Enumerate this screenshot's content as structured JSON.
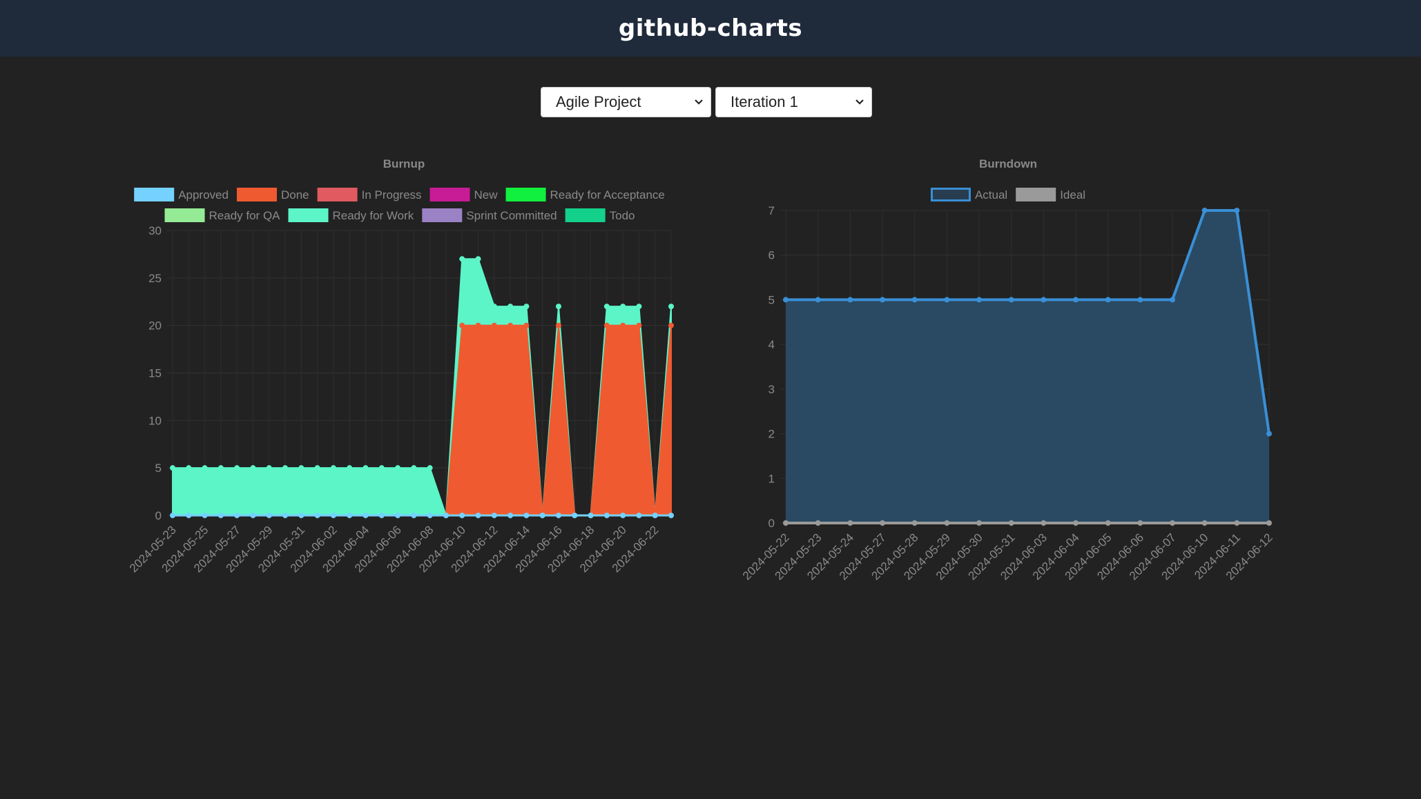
{
  "header": {
    "title": "github-charts"
  },
  "filters": {
    "project": "Agile Project",
    "iteration": "Iteration 1"
  },
  "colors": {
    "topbar": "#1f2a3a",
    "background": "#222222"
  },
  "chart_data": [
    {
      "type": "area",
      "title": "Burnup",
      "ylim": [
        0,
        30
      ],
      "y_ticks": [
        "0",
        "5",
        "10",
        "15",
        "20",
        "25",
        "30"
      ],
      "x_tick_labels": [
        "2024-05-23",
        "2024-05-25",
        "2024-05-27",
        "2024-05-29",
        "2024-05-31",
        "2024-06-02",
        "2024-06-04",
        "2024-06-06",
        "2024-06-08",
        "2024-06-10",
        "2024-06-12",
        "2024-06-14",
        "2024-06-16",
        "2024-06-18",
        "2024-06-20",
        "2024-06-22"
      ],
      "legend_position": "top",
      "legend": [
        {
          "name": "Approved",
          "color": "#75d1ff"
        },
        {
          "name": "Done",
          "color": "#f05a30"
        },
        {
          "name": "In Progress",
          "color": "#e05a60"
        },
        {
          "name": "New",
          "color": "#c81b96"
        },
        {
          "name": "Ready for Acceptance",
          "color": "#12f03f"
        },
        {
          "name": "Ready for QA",
          "color": "#95eb95"
        },
        {
          "name": "Ready for Work",
          "color": "#5cf5c8"
        },
        {
          "name": "Sprint Committed",
          "color": "#9b82c5"
        },
        {
          "name": "Todo",
          "color": "#13d18b"
        }
      ],
      "series": [
        {
          "name": "Approved",
          "values": [
            0,
            0,
            0,
            0,
            0,
            0,
            0,
            0,
            0,
            0,
            0,
            0,
            0,
            0,
            0,
            0,
            0,
            0,
            0,
            0,
            0,
            0,
            0,
            0,
            0,
            0,
            0,
            0,
            0,
            0,
            0,
            0
          ]
        },
        {
          "name": "Done",
          "values": [
            0,
            0,
            0,
            0,
            0,
            0,
            0,
            0,
            0,
            0,
            0,
            0,
            0,
            0,
            0,
            0,
            0,
            0,
            20,
            20,
            20,
            20,
            20,
            0,
            20,
            0,
            0,
            20,
            20,
            20,
            0,
            20
          ]
        },
        {
          "name": "Ready for Work",
          "values": [
            5,
            5,
            5,
            5,
            5,
            5,
            5,
            5,
            5,
            5,
            5,
            5,
            5,
            5,
            5,
            5,
            5,
            0,
            7,
            7,
            2,
            2,
            2,
            0,
            2,
            0,
            0,
            2,
            2,
            2,
            0,
            2
          ]
        }
      ],
      "grid": true
    },
    {
      "type": "line",
      "title": "Burndown",
      "ylim": [
        0,
        7
      ],
      "y_ticks": [
        "0",
        "1",
        "2",
        "3",
        "4",
        "5",
        "6",
        "7"
      ],
      "categories": [
        "2024-05-22",
        "2024-05-23",
        "2024-05-24",
        "2024-05-27",
        "2024-05-28",
        "2024-05-29",
        "2024-05-30",
        "2024-05-31",
        "2024-06-03",
        "2024-06-04",
        "2024-06-05",
        "2024-06-06",
        "2024-06-07",
        "2024-06-10",
        "2024-06-11",
        "2024-06-12"
      ],
      "legend_position": "top",
      "legend": [
        {
          "name": "Actual",
          "color": "#3a8fd6"
        },
        {
          "name": "Ideal",
          "color": "#9a9a9a"
        }
      ],
      "series": [
        {
          "name": "Actual",
          "values": [
            5,
            5,
            5,
            5,
            5,
            5,
            5,
            5,
            5,
            5,
            5,
            5,
            5,
            7,
            7,
            2
          ]
        },
        {
          "name": "Ideal",
          "values": [
            0,
            0,
            0,
            0,
            0,
            0,
            0,
            0,
            0,
            0,
            0,
            0,
            0,
            0,
            0,
            0
          ]
        }
      ],
      "grid": true
    }
  ]
}
